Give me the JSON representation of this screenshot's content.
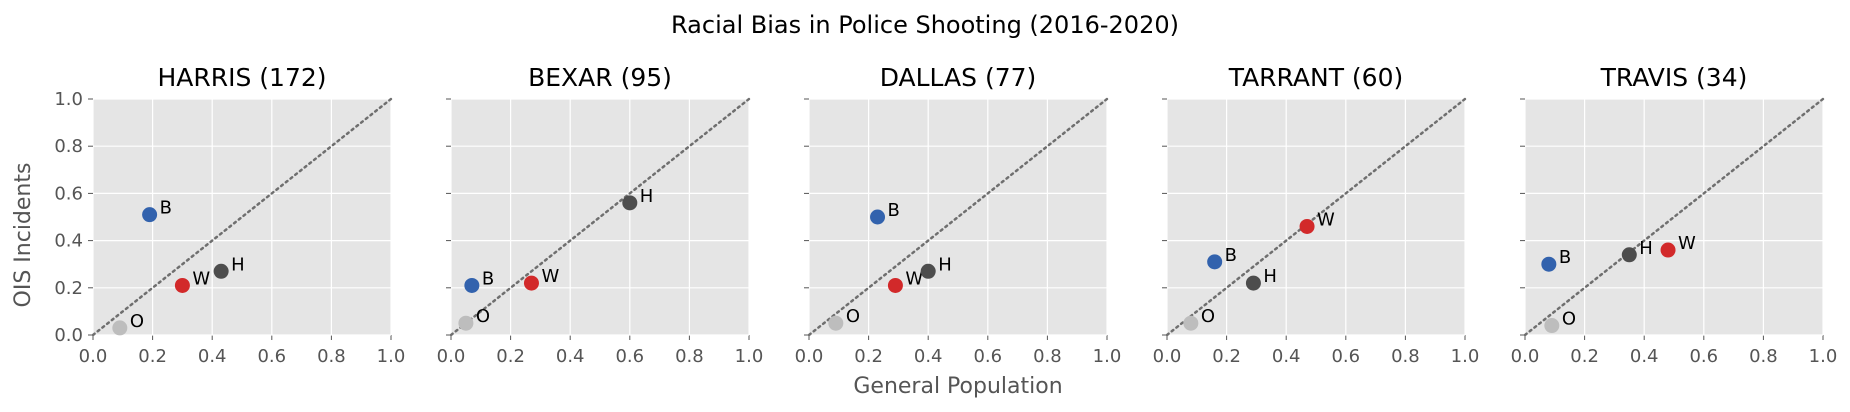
{
  "figure": {
    "title": "Racial Bias in Police Shooting (2016-2020)",
    "xlabel": "General Population",
    "ylabel": "OIS Incidents"
  },
  "colors": {
    "panel_bg": "#e5e5e5",
    "grid": "#ffffff",
    "diagonal": "#6f6f6f",
    "B": "#3262ad",
    "W": "#d2292a",
    "H": "#4d4d4d",
    "O": "#bdbdbd"
  },
  "chart_data": [
    {
      "type": "scatter",
      "title": "HARRIS (172)",
      "xlim": [
        0,
        1
      ],
      "ylim": [
        0,
        1
      ],
      "xticks": [
        "0.0",
        "0.2",
        "0.4",
        "0.6",
        "0.8",
        "1.0"
      ],
      "yticks": [
        "0.0",
        "0.2",
        "0.4",
        "0.6",
        "0.8",
        "1.0"
      ],
      "diagonal": true,
      "grid": true,
      "points": [
        {
          "label": "B",
          "x": 0.19,
          "y": 0.51
        },
        {
          "label": "W",
          "x": 0.3,
          "y": 0.21
        },
        {
          "label": "H",
          "x": 0.43,
          "y": 0.27
        },
        {
          "label": "O",
          "x": 0.09,
          "y": 0.03
        }
      ]
    },
    {
      "type": "scatter",
      "title": "BEXAR (95)",
      "xlim": [
        0,
        1
      ],
      "ylim": [
        0,
        1
      ],
      "xticks": [
        "0.0",
        "0.2",
        "0.4",
        "0.6",
        "0.8",
        "1.0"
      ],
      "yticks": [],
      "diagonal": true,
      "grid": true,
      "points": [
        {
          "label": "B",
          "x": 0.07,
          "y": 0.21
        },
        {
          "label": "W",
          "x": 0.27,
          "y": 0.22
        },
        {
          "label": "H",
          "x": 0.6,
          "y": 0.56
        },
        {
          "label": "O",
          "x": 0.05,
          "y": 0.05
        }
      ]
    },
    {
      "type": "scatter",
      "title": "DALLAS (77)",
      "xlim": [
        0,
        1
      ],
      "ylim": [
        0,
        1
      ],
      "xticks": [
        "0.0",
        "0.2",
        "0.4",
        "0.6",
        "0.8",
        "1.0"
      ],
      "yticks": [],
      "diagonal": true,
      "grid": true,
      "points": [
        {
          "label": "B",
          "x": 0.23,
          "y": 0.5
        },
        {
          "label": "W",
          "x": 0.29,
          "y": 0.21
        },
        {
          "label": "H",
          "x": 0.4,
          "y": 0.27
        },
        {
          "label": "O",
          "x": 0.09,
          "y": 0.05
        }
      ]
    },
    {
      "type": "scatter",
      "title": "TARRANT (60)",
      "xlim": [
        0,
        1
      ],
      "ylim": [
        0,
        1
      ],
      "xticks": [
        "0.0",
        "0.2",
        "0.4",
        "0.6",
        "0.8",
        "1.0"
      ],
      "yticks": [],
      "diagonal": true,
      "grid": true,
      "points": [
        {
          "label": "B",
          "x": 0.16,
          "y": 0.31
        },
        {
          "label": "W",
          "x": 0.47,
          "y": 0.46
        },
        {
          "label": "H",
          "x": 0.29,
          "y": 0.22
        },
        {
          "label": "O",
          "x": 0.08,
          "y": 0.05
        }
      ]
    },
    {
      "type": "scatter",
      "title": "TRAVIS (34)",
      "xlim": [
        0,
        1
      ],
      "ylim": [
        0,
        1
      ],
      "xticks": [
        "0.0",
        "0.2",
        "0.4",
        "0.6",
        "0.8",
        "1.0"
      ],
      "yticks": [],
      "diagonal": true,
      "grid": true,
      "points": [
        {
          "label": "B",
          "x": 0.08,
          "y": 0.3
        },
        {
          "label": "W",
          "x": 0.48,
          "y": 0.36
        },
        {
          "label": "H",
          "x": 0.35,
          "y": 0.34
        },
        {
          "label": "O",
          "x": 0.09,
          "y": 0.04
        }
      ]
    }
  ]
}
